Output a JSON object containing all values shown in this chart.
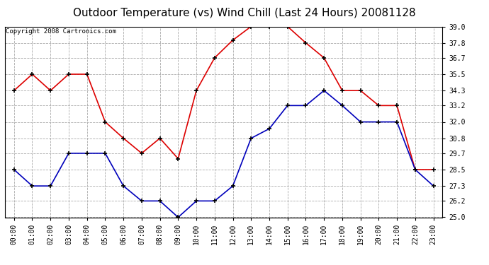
{
  "title": "Outdoor Temperature (vs) Wind Chill (Last 24 Hours) 20081128",
  "copyright": "Copyright 2008 Cartronics.com",
  "x_labels": [
    "00:00",
    "01:00",
    "02:00",
    "03:00",
    "04:00",
    "05:00",
    "06:00",
    "07:00",
    "08:00",
    "09:00",
    "10:00",
    "11:00",
    "12:00",
    "13:00",
    "14:00",
    "15:00",
    "16:00",
    "17:00",
    "18:00",
    "19:00",
    "20:00",
    "21:00",
    "22:00",
    "23:00"
  ],
  "temp_red": [
    34.3,
    35.5,
    34.3,
    35.5,
    35.5,
    32.0,
    30.8,
    29.7,
    30.8,
    29.3,
    34.3,
    36.7,
    38.0,
    39.0,
    39.0,
    39.0,
    37.8,
    36.7,
    34.3,
    34.3,
    33.2,
    33.2,
    28.5,
    28.5
  ],
  "wind_blue": [
    28.5,
    27.3,
    27.3,
    29.7,
    29.7,
    29.7,
    27.3,
    26.2,
    26.2,
    25.0,
    26.2,
    26.2,
    27.3,
    30.8,
    31.5,
    33.2,
    33.2,
    34.3,
    33.2,
    32.0,
    32.0,
    32.0,
    28.5,
    27.3
  ],
  "ylim": [
    25.0,
    39.0
  ],
  "yticks": [
    25.0,
    26.2,
    27.3,
    28.5,
    29.7,
    30.8,
    32.0,
    33.2,
    34.3,
    35.5,
    36.7,
    37.8,
    39.0
  ],
  "red_color": "#dd0000",
  "blue_color": "#0000bb",
  "bg_color": "#ffffff",
  "plot_bg": "#ffffff",
  "grid_color": "#aaaaaa",
  "title_fontsize": 11,
  "copyright_fontsize": 6.5,
  "tick_fontsize": 7,
  "ytick_fontsize": 7
}
